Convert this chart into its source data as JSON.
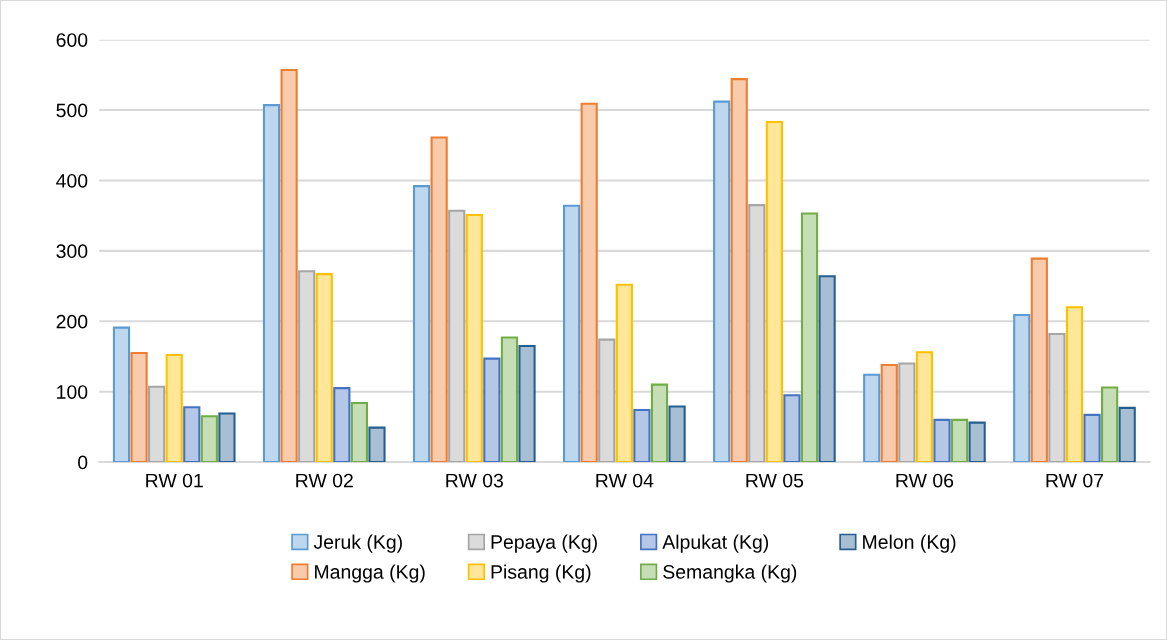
{
  "chart_data": {
    "type": "bar",
    "categories": [
      "RW 01",
      "RW 02",
      "RW 03",
      "RW 04",
      "RW 05",
      "RW 06",
      "RW 07"
    ],
    "series": [
      {
        "name": "Jeruk (Kg)",
        "color": "#5b9bd5",
        "values": [
          191,
          507,
          392,
          364,
          512,
          124,
          209
        ]
      },
      {
        "name": "Mangga (Kg)",
        "color": "#ed7d31",
        "values": [
          155,
          557,
          461,
          509,
          544,
          138,
          289
        ]
      },
      {
        "name": "Pepaya (Kg)",
        "color": "#a5a5a5",
        "values": [
          107,
          271,
          357,
          174,
          365,
          140,
          182
        ]
      },
      {
        "name": "Pisang (Kg)",
        "color": "#ffc000",
        "values": [
          152,
          267,
          351,
          252,
          483,
          156,
          220
        ]
      },
      {
        "name": "Alpukat (Kg)",
        "color": "#4472c4",
        "values": [
          78,
          105,
          147,
          74,
          95,
          60,
          67
        ]
      },
      {
        "name": "Semangka (Kg)",
        "color": "#70ad47",
        "values": [
          65,
          84,
          177,
          110,
          353,
          60,
          106
        ]
      },
      {
        "name": "Melon (Kg)",
        "color": "#255e91",
        "values": [
          69,
          49,
          165,
          79,
          264,
          56,
          77
        ]
      }
    ],
    "ylim": [
      0,
      600
    ],
    "yticks": [
      0,
      100,
      200,
      300,
      400,
      500,
      600
    ],
    "grid": "y",
    "legend": "bottom"
  }
}
